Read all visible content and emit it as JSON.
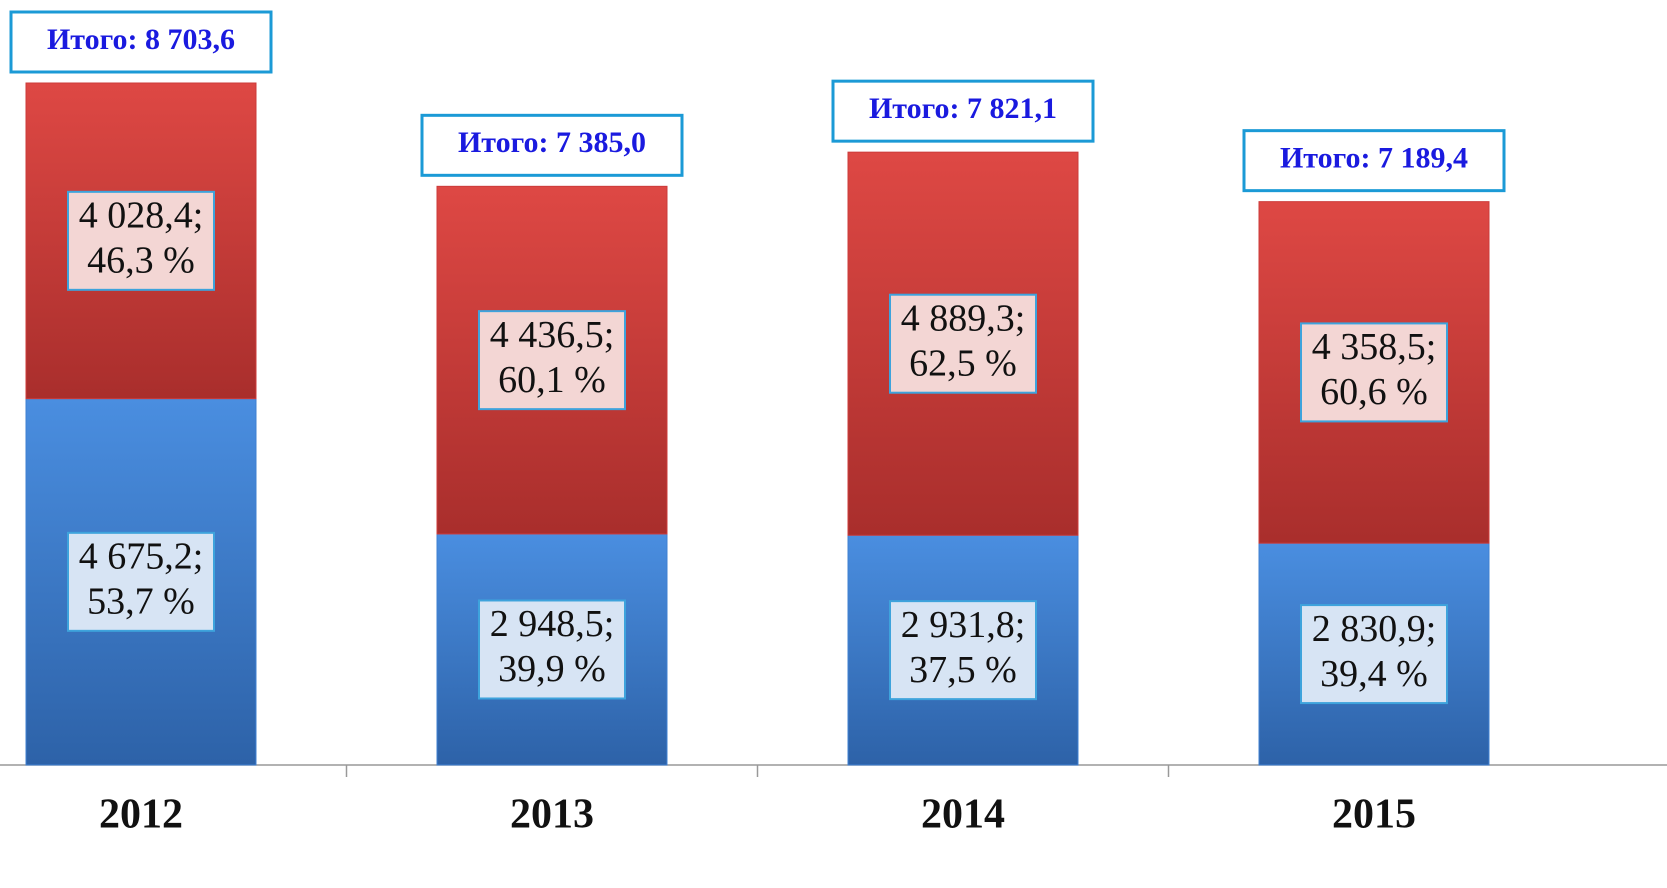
{
  "chart_data": {
    "type": "stacked-bar",
    "categories": [
      "2012",
      "2013",
      "2014",
      "2015"
    ],
    "series": [
      {
        "color": "#3f80d2",
        "values": [
          4675.2,
          2948.5,
          2931.8,
          2830.9
        ],
        "value_labels": [
          "4 675,2;",
          "2 948,5;",
          "2 931,8;",
          "2 830,9;"
        ],
        "share_labels": [
          "53,7 %",
          "39,9 %",
          "37,5 %",
          "39,4 %"
        ]
      },
      {
        "color": "#cc3b3a",
        "values": [
          4028.4,
          4436.5,
          4889.3,
          4358.5
        ],
        "value_labels": [
          "4 028,4;",
          "4 436,5;",
          "4 889,3;",
          "4 358,5;"
        ],
        "share_labels": [
          "46,3 %",
          "60,1 %",
          "62,5 %",
          "60,6 %"
        ]
      }
    ],
    "totals": [
      8703.6,
      7385.0,
      7821.1,
      7189.4
    ],
    "total_labels": [
      "Итого: 8 703,6",
      "Итого: 7 385,0",
      "Итого: 7 821,1",
      "Итого: 7 189,4"
    ]
  }
}
